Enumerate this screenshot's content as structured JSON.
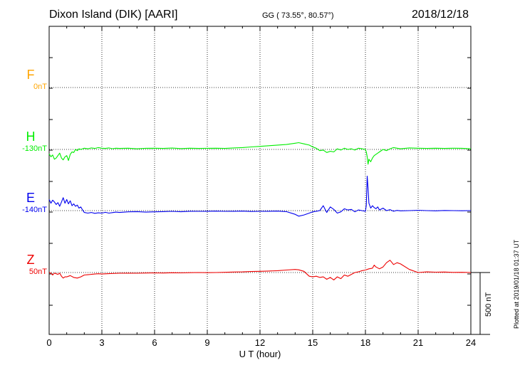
{
  "header": {
    "station": "Dixon Island (DIK)  [AARI]",
    "coords": "GG ( 73.55°,  80.57°)",
    "date": "2018/12/18"
  },
  "plotted": "Plotted at 2019/01/18 01:37 UT",
  "scale_bar": "500 nT",
  "chart_data": {
    "type": "line",
    "title": "Dixon Island (DIK)  [AARI]",
    "xlabel": "U T (hour)",
    "ylabel": "",
    "xlim": [
      0,
      24
    ],
    "x_ticks": [
      "0",
      "3",
      "6",
      "9",
      "12",
      "15",
      "18",
      "21",
      "24"
    ],
    "grid": true,
    "scale_nT": 500,
    "series": [
      {
        "name": "F",
        "baseline_label": "0nT",
        "color": "#ffa500",
        "level": 3,
        "x": [],
        "values": []
      },
      {
        "name": "H",
        "baseline_label": "-130nT",
        "color": "#00ee00",
        "level": 2,
        "x": [
          0.0,
          0.1,
          0.2,
          0.3,
          0.4,
          0.5,
          0.6,
          0.7,
          0.8,
          0.9,
          1.0,
          1.1,
          1.2,
          1.3,
          1.4,
          1.5,
          1.6,
          1.7,
          1.8,
          1.9,
          2.0,
          2.2,
          2.4,
          2.6,
          2.8,
          3.0,
          3.2,
          3.4,
          3.6,
          3.8,
          4.0,
          4.5,
          5.0,
          5.5,
          6.0,
          6.5,
          7.0,
          7.5,
          8.0,
          8.5,
          9.0,
          9.5,
          10.0,
          10.5,
          11.0,
          11.5,
          12.0,
          12.5,
          13.0,
          13.5,
          14.0,
          14.2,
          14.5,
          14.8,
          15.0,
          15.2,
          15.4,
          15.6,
          15.8,
          16.0,
          16.2,
          16.4,
          16.6,
          16.8,
          17.0,
          17.2,
          17.4,
          17.6,
          17.8,
          18.0,
          18.05,
          18.1,
          18.15,
          18.2,
          18.3,
          18.4,
          18.5,
          18.6,
          18.7,
          18.8,
          19.0,
          19.2,
          19.4,
          19.6,
          19.8,
          20.0,
          20.5,
          21.0,
          21.5,
          22.0,
          22.5,
          23.0,
          23.5,
          24.0
        ],
        "values": [
          -35,
          -60,
          -45,
          -80,
          -70,
          -50,
          -30,
          -70,
          -85,
          -60,
          -50,
          -90,
          -40,
          -20,
          -25,
          0,
          -10,
          5,
          0,
          5,
          10,
          5,
          12,
          8,
          15,
          10,
          8,
          12,
          6,
          10,
          8,
          10,
          5,
          9,
          10,
          8,
          11,
          7,
          10,
          8,
          9,
          10,
          8,
          12,
          15,
          20,
          25,
          30,
          35,
          40,
          50,
          55,
          45,
          35,
          20,
          10,
          -10,
          -5,
          -25,
          -15,
          -20,
          5,
          -5,
          10,
          0,
          5,
          -5,
          10,
          5,
          0,
          -20,
          -60,
          -120,
          -80,
          -100,
          -70,
          -50,
          -40,
          -30,
          -20,
          0,
          -10,
          5,
          15,
          10,
          5,
          12,
          10,
          8,
          10,
          8,
          10,
          9,
          5
        ]
      },
      {
        "name": "E",
        "baseline_label": "-140nT",
        "color": "#0000ee",
        "level": 1,
        "x": [
          0.0,
          0.1,
          0.2,
          0.3,
          0.4,
          0.5,
          0.6,
          0.7,
          0.8,
          0.9,
          1.0,
          1.1,
          1.2,
          1.3,
          1.4,
          1.5,
          1.6,
          1.7,
          1.8,
          1.9,
          2.0,
          2.2,
          2.4,
          2.6,
          2.8,
          3.0,
          3.2,
          3.4,
          3.6,
          3.8,
          4.0,
          4.5,
          5.0,
          5.5,
          6.0,
          6.5,
          7.0,
          7.5,
          8.0,
          8.5,
          9.0,
          9.5,
          10.0,
          10.5,
          11.0,
          11.5,
          12.0,
          12.5,
          13.0,
          13.5,
          14.0,
          14.2,
          14.5,
          14.8,
          15.0,
          15.2,
          15.4,
          15.6,
          15.8,
          16.0,
          16.2,
          16.4,
          16.6,
          16.8,
          17.0,
          17.2,
          17.4,
          17.6,
          17.8,
          18.0,
          18.05,
          18.1,
          18.15,
          18.2,
          18.3,
          18.4,
          18.5,
          18.6,
          18.7,
          18.8,
          19.0,
          19.2,
          19.4,
          19.6,
          19.8,
          20.0,
          20.5,
          21.0,
          21.5,
          22.0,
          22.5,
          23.0,
          23.5,
          24.0
        ],
        "values": [
          90,
          60,
          85,
          70,
          50,
          65,
          35,
          70,
          105,
          60,
          90,
          55,
          80,
          40,
          55,
          35,
          45,
          20,
          30,
          5,
          -15,
          -20,
          -15,
          -22,
          -18,
          -20,
          -14,
          -20,
          -16,
          -12,
          -15,
          -10,
          -8,
          -12,
          -10,
          -8,
          -6,
          -9,
          -5,
          -6,
          -5,
          -4,
          -6,
          -5,
          -4,
          -7,
          -6,
          -5,
          -4,
          -8,
          -30,
          -45,
          -35,
          -20,
          -10,
          -5,
          0,
          40,
          -15,
          30,
          10,
          -20,
          -10,
          15,
          5,
          10,
          -10,
          5,
          0,
          -5,
          40,
          280,
          180,
          60,
          20,
          40,
          25,
          15,
          30,
          5,
          20,
          0,
          8,
          -5,
          2,
          -2,
          0,
          3,
          0,
          -2,
          1,
          0,
          -1,
          0
        ]
      },
      {
        "name": "Z",
        "baseline_label": "50nT",
        "color": "#ee0000",
        "level": 0,
        "x": [
          0.0,
          0.1,
          0.2,
          0.3,
          0.4,
          0.5,
          0.6,
          0.7,
          0.8,
          0.9,
          1.0,
          1.2,
          1.4,
          1.6,
          1.8,
          2.0,
          2.2,
          2.4,
          2.6,
          2.8,
          3.0,
          3.5,
          4.0,
          4.5,
          5.0,
          5.5,
          6.0,
          6.5,
          7.0,
          7.5,
          8.0,
          8.5,
          9.0,
          9.5,
          10.0,
          10.5,
          11.0,
          11.5,
          12.0,
          12.5,
          13.0,
          13.5,
          14.0,
          14.2,
          14.5,
          14.8,
          15.0,
          15.2,
          15.4,
          15.6,
          15.8,
          16.0,
          16.2,
          16.4,
          16.6,
          16.8,
          17.0,
          17.2,
          17.4,
          17.6,
          17.8,
          18.0,
          18.2,
          18.4,
          18.5,
          18.6,
          18.8,
          19.0,
          19.2,
          19.4,
          19.6,
          19.8,
          20.0,
          20.5,
          21.0,
          21.5,
          22.0,
          22.5,
          23.0,
          23.5,
          24.0
        ],
        "values": [
          0,
          -5,
          -20,
          -5,
          -10,
          -15,
          -5,
          -30,
          -45,
          -35,
          -35,
          -25,
          -40,
          -45,
          -35,
          -20,
          -18,
          -15,
          -12,
          -10,
          -12,
          -8,
          -6,
          -5,
          -6,
          -4,
          -3,
          -4,
          -2,
          -3,
          -1,
          0,
          -1,
          0,
          2,
          4,
          5,
          8,
          10,
          12,
          15,
          20,
          25,
          22,
          10,
          -30,
          -35,
          -30,
          -40,
          -35,
          -55,
          -40,
          -60,
          -35,
          -50,
          -20,
          -30,
          -15,
          0,
          5,
          15,
          20,
          30,
          35,
          60,
          45,
          30,
          45,
          80,
          100,
          65,
          80,
          70,
          25,
          0,
          5,
          3,
          4,
          1,
          2,
          0
        ]
      }
    ]
  }
}
